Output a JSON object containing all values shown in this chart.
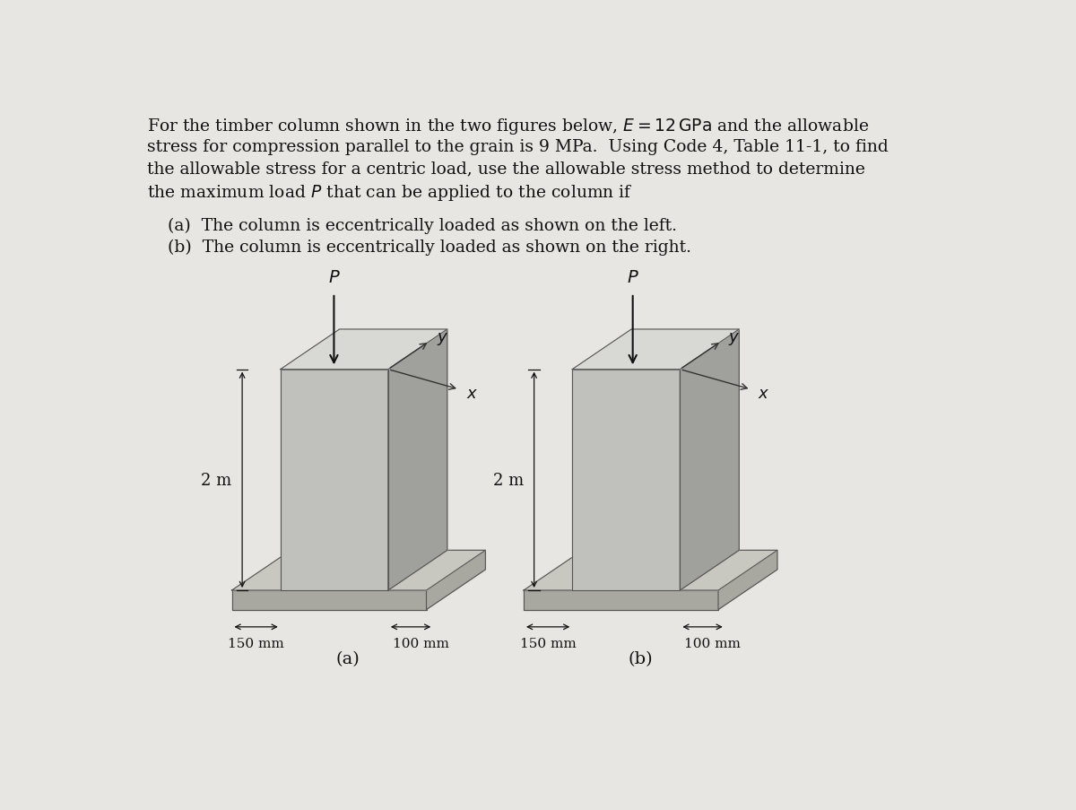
{
  "bg_color": "#e8e6e2",
  "text_color": "#111111",
  "title_line1": "For the timber column shown in the two figures below, $E = 12\\,\\mathrm{GPa}$ and the allowable",
  "title_line2": "stress for compression parallel to the grain is 9 MPa.  Using Code 4, Table 11-1, to find",
  "title_line3": "the allowable stress for a centric load, use the allowable stress method to determine",
  "title_line4": "the maximum load $P$ that can be applied to the column if",
  "sub_a": "(a)  The column is eccentrically loaded as shown on the left.",
  "sub_b": "(b)  The column is eccentrically loaded as shown on the right.",
  "col_front_color": "#c0c0bc",
  "col_side_color": "#a0a09c",
  "col_top_color": "#d8d8d4",
  "base_color": "#a8a8a0",
  "base_top_color": "#c8c8c0",
  "edge_color": "#555555",
  "arrow_color": "#111111",
  "axis_line_color": "#333333"
}
